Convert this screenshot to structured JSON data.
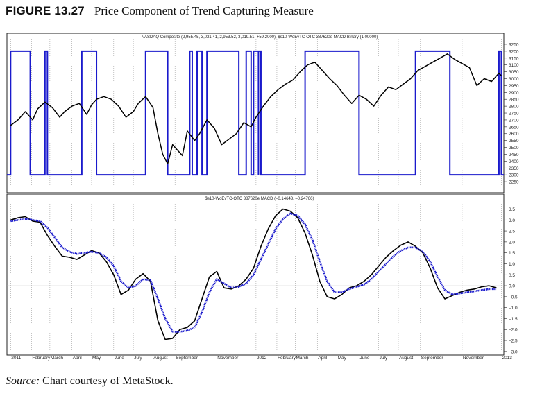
{
  "figure": {
    "label": "FIGURE 13.27",
    "caption": "Price Component of Trend Capturing Measure"
  },
  "source": {
    "prefix": "Source:",
    "text": "Chart courtesy of MetaStock."
  },
  "chart_data": [
    {
      "type": "line",
      "title": "NASDAQ Composite (2,955.45, 3,021.41, 2,953.52, 3,019.51, +59.2000), $s10-WoEvTC-OTC 387620e MACD Binary (1.00000)",
      "ylim": [
        2200,
        3270
      ],
      "yticks": [
        2250,
        2300,
        2350,
        2400,
        2450,
        2500,
        2550,
        2600,
        2650,
        2700,
        2750,
        2800,
        2850,
        2900,
        2950,
        3000,
        3050,
        3100,
        3150,
        3200,
        3250
      ],
      "series": [
        {
          "color": "#000000",
          "x": [
            2011.0,
            2011.03,
            2011.06,
            2011.09,
            2011.11,
            2011.14,
            2011.17,
            2011.2,
            2011.22,
            2011.25,
            2011.28,
            2011.31,
            2011.33,
            2011.35,
            2011.38,
            2011.41,
            2011.44,
            2011.47,
            2011.5,
            2011.52,
            2011.55,
            2011.58,
            2011.6,
            2011.62,
            2011.64,
            2011.66,
            2011.68,
            2011.7,
            2011.72,
            2011.75,
            2011.77,
            2011.8,
            2011.83,
            2011.86,
            2011.89,
            2011.92,
            2011.95,
            2011.98,
            2012.0,
            2012.03,
            2012.06,
            2012.09,
            2012.12,
            2012.15,
            2012.18,
            2012.21,
            2012.24,
            2012.27,
            2012.3,
            2012.33,
            2012.36,
            2012.39,
            2012.42,
            2012.45,
            2012.48,
            2012.51,
            2012.54,
            2012.57,
            2012.6,
            2012.63,
            2012.66,
            2012.69,
            2012.72,
            2012.75,
            2012.78,
            2012.81,
            2012.84,
            2012.87,
            2012.9,
            2012.93,
            2012.96,
            2012.99,
            2013.0
          ],
          "values": [
            2660,
            2700,
            2760,
            2700,
            2780,
            2830,
            2790,
            2720,
            2760,
            2800,
            2820,
            2740,
            2810,
            2850,
            2870,
            2850,
            2800,
            2720,
            2760,
            2820,
            2870,
            2790,
            2600,
            2450,
            2380,
            2520,
            2480,
            2440,
            2620,
            2550,
            2600,
            2700,
            2640,
            2520,
            2560,
            2600,
            2680,
            2650,
            2720,
            2800,
            2870,
            2920,
            2960,
            2990,
            3050,
            3100,
            3120,
            3060,
            3000,
            2950,
            2880,
            2820,
            2880,
            2850,
            2800,
            2880,
            2940,
            2920,
            2960,
            3000,
            3060,
            3090,
            3120,
            3150,
            3180,
            3140,
            3110,
            3080,
            2950,
            3000,
            2980,
            3040,
            3020
          ]
        }
      ],
      "binary_step": {
        "color": "#1a1acc",
        "high": 3200,
        "low": 2300,
        "intervals_high": [
          [
            2011.0,
            2011.08
          ],
          [
            2011.14,
            2011.15
          ],
          [
            2011.29,
            2011.35
          ],
          [
            2011.55,
            2011.64
          ],
          [
            2011.73,
            2011.74
          ],
          [
            2011.76,
            2011.78
          ],
          [
            2011.8,
            2011.93
          ],
          [
            2011.96,
            2011.98
          ],
          [
            2011.99,
            2012.01
          ],
          [
            2012.01,
            2012.02
          ],
          [
            2012.2,
            2012.42
          ],
          [
            2012.65,
            2012.79
          ],
          [
            2012.99,
            2013.0
          ]
        ]
      }
    },
    {
      "type": "line",
      "title": "$s10-WoEvTC-OTC 387620e MACD (–0.14643, –0.24766)",
      "ylim": [
        -3.1,
        3.8
      ],
      "yticks": [
        3.5,
        3.0,
        2.5,
        2.0,
        1.5,
        1.0,
        0.5,
        0.0,
        -0.5,
        -1.0,
        -1.5,
        -2.0,
        -2.5,
        -3.0
      ],
      "ytick_labels": [
        "3.5",
        "3.0",
        "2.5",
        "2.0",
        "1.5",
        "1.0",
        "0.5",
        "0.0",
        "–0.5",
        "–1.0",
        "–1.5",
        "–2.0",
        "–2.5",
        "–3.0"
      ],
      "series": [
        {
          "color": "#000000",
          "x": [
            2011.0,
            2011.03,
            2011.06,
            2011.09,
            2011.12,
            2011.15,
            2011.18,
            2011.21,
            2011.24,
            2011.27,
            2011.3,
            2011.33,
            2011.36,
            2011.39,
            2011.42,
            2011.45,
            2011.48,
            2011.51,
            2011.54,
            2011.57,
            2011.6,
            2011.63,
            2011.66,
            2011.69,
            2011.72,
            2011.75,
            2011.78,
            2011.81,
            2011.84,
            2011.87,
            2011.9,
            2011.93,
            2011.96,
            2011.99,
            2012.02,
            2012.05,
            2012.08,
            2012.11,
            2012.14,
            2012.17,
            2012.2,
            2012.23,
            2012.26,
            2012.29,
            2012.32,
            2012.35,
            2012.38,
            2012.41,
            2012.44,
            2012.47,
            2012.5,
            2012.53,
            2012.56,
            2012.59,
            2012.62,
            2012.65,
            2012.68,
            2012.71,
            2012.74,
            2012.77,
            2012.8,
            2012.83,
            2012.86,
            2012.89,
            2012.92,
            2012.95,
            2012.98
          ],
          "values": [
            3.0,
            3.1,
            3.15,
            2.95,
            2.9,
            2.3,
            1.8,
            1.35,
            1.3,
            1.2,
            1.4,
            1.6,
            1.5,
            1.1,
            0.5,
            -0.4,
            -0.2,
            0.3,
            0.55,
            0.2,
            -1.6,
            -2.45,
            -2.4,
            -2.0,
            -1.9,
            -1.6,
            -0.6,
            0.4,
            0.65,
            -0.1,
            -0.15,
            0.0,
            0.3,
            0.8,
            1.8,
            2.6,
            3.2,
            3.5,
            3.4,
            3.1,
            2.4,
            1.4,
            0.2,
            -0.5,
            -0.6,
            -0.4,
            -0.1,
            0.0,
            0.2,
            0.5,
            0.9,
            1.3,
            1.6,
            1.85,
            2.0,
            1.8,
            1.5,
            0.8,
            -0.1,
            -0.6,
            -0.45,
            -0.3,
            -0.2,
            -0.15,
            -0.05,
            0.0,
            -0.1
          ]
        },
        {
          "color": "#1a1acc",
          "x": [
            2011.0,
            2011.03,
            2011.06,
            2011.09,
            2011.12,
            2011.15,
            2011.18,
            2011.21,
            2011.24,
            2011.27,
            2011.3,
            2011.33,
            2011.36,
            2011.39,
            2011.42,
            2011.45,
            2011.48,
            2011.51,
            2011.54,
            2011.57,
            2011.6,
            2011.63,
            2011.66,
            2011.69,
            2011.72,
            2011.75,
            2011.78,
            2011.81,
            2011.84,
            2011.87,
            2011.9,
            2011.93,
            2011.96,
            2011.99,
            2012.02,
            2012.05,
            2012.08,
            2012.11,
            2012.14,
            2012.17,
            2012.2,
            2012.23,
            2012.26,
            2012.29,
            2012.32,
            2012.35,
            2012.38,
            2012.41,
            2012.44,
            2012.47,
            2012.5,
            2012.53,
            2012.56,
            2012.59,
            2012.62,
            2012.65,
            2012.68,
            2012.71,
            2012.74,
            2012.77,
            2012.8,
            2012.83,
            2012.86,
            2012.89,
            2012.92,
            2012.95,
            2012.98
          ],
          "values": [
            2.95,
            3.0,
            3.05,
            3.0,
            2.95,
            2.65,
            2.2,
            1.75,
            1.55,
            1.45,
            1.5,
            1.55,
            1.5,
            1.3,
            0.9,
            0.2,
            -0.1,
            0.0,
            0.3,
            0.25,
            -0.6,
            -1.5,
            -2.1,
            -2.1,
            -2.05,
            -1.9,
            -1.2,
            -0.3,
            0.3,
            0.1,
            -0.1,
            -0.05,
            0.1,
            0.5,
            1.2,
            1.9,
            2.6,
            3.05,
            3.3,
            3.2,
            2.8,
            2.1,
            1.1,
            0.2,
            -0.3,
            -0.3,
            -0.15,
            -0.05,
            0.05,
            0.3,
            0.65,
            1.0,
            1.35,
            1.6,
            1.75,
            1.75,
            1.55,
            1.1,
            0.4,
            -0.2,
            -0.4,
            -0.35,
            -0.3,
            -0.25,
            -0.2,
            -0.15,
            -0.15
          ]
        }
      ]
    }
  ],
  "x_axis": {
    "xlim": [
      2010.985,
      2013.01
    ],
    "labels": [
      {
        "x": 2011.0,
        "label": "2011"
      },
      {
        "x": 2011.085,
        "label": "February"
      },
      {
        "x": 2011.16,
        "label": "March"
      },
      {
        "x": 2011.25,
        "label": "April"
      },
      {
        "x": 2011.33,
        "label": "May"
      },
      {
        "x": 2011.42,
        "label": "June"
      },
      {
        "x": 2011.5,
        "label": "July"
      },
      {
        "x": 2011.58,
        "label": "August"
      },
      {
        "x": 2011.67,
        "label": "September"
      },
      {
        "x": 2011.84,
        "label": "November"
      },
      {
        "x": 2012.0,
        "label": "2012"
      },
      {
        "x": 2012.085,
        "label": "February"
      },
      {
        "x": 2012.16,
        "label": "March"
      },
      {
        "x": 2012.25,
        "label": "April"
      },
      {
        "x": 2012.33,
        "label": "May"
      },
      {
        "x": 2012.42,
        "label": "June"
      },
      {
        "x": 2012.5,
        "label": "July"
      },
      {
        "x": 2012.58,
        "label": "August"
      },
      {
        "x": 2012.67,
        "label": "September"
      },
      {
        "x": 2012.84,
        "label": "November"
      },
      {
        "x": 2013.0,
        "label": "2013"
      }
    ],
    "gridlines": "dotted vertical at month boundaries"
  }
}
